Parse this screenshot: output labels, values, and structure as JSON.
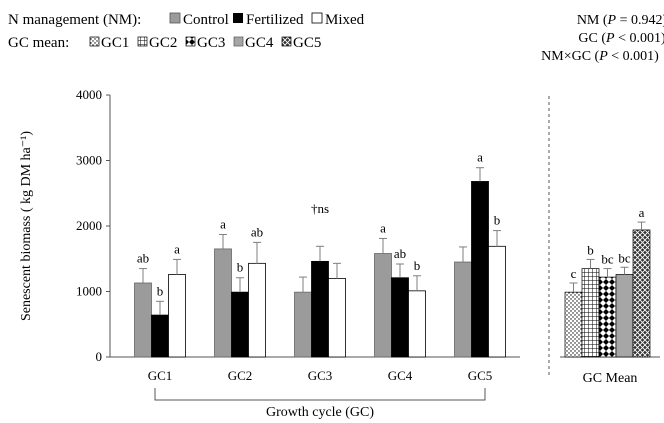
{
  "legend": {
    "nm_label": "N management (NM):",
    "nm_items": [
      "Control",
      "Fertilized",
      "Mixed"
    ],
    "gc_label": "GC mean:",
    "gc_items": [
      "GC1",
      "GC2",
      "GC3",
      "GC4",
      "GC5"
    ]
  },
  "stats": [
    {
      "prefix": "NM (",
      "p": "P",
      "rest": " = 0.942)"
    },
    {
      "prefix": "GC (",
      "p": "P",
      "rest": " < 0.001)"
    },
    {
      "prefix": "NM×GC (",
      "p": "P",
      "rest": " < 0.001)"
    }
  ],
  "colors": {
    "control": "#9b9b9b",
    "fertilized": "#000000",
    "mixed": "#ffffff",
    "error_bar": "#7f7f7f",
    "separator": "#555555"
  },
  "chart_data": [
    {
      "type": "bar",
      "categories": [
        "GC1",
        "GC2",
        "GC3",
        "GC4",
        "GC5"
      ],
      "series": [
        {
          "name": "Control",
          "values": [
            1130,
            1650,
            990,
            1580,
            1450
          ],
          "errors": [
            220,
            220,
            230,
            230,
            230
          ],
          "letters": [
            "ab",
            "a",
            "",
            "a",
            ""
          ]
        },
        {
          "name": "Fertilized",
          "values": [
            640,
            990,
            1460,
            1210,
            2680
          ],
          "errors": [
            210,
            220,
            230,
            210,
            210
          ],
          "letters": [
            "b",
            "b",
            "",
            "ab",
            "a"
          ]
        },
        {
          "name": "Mixed",
          "values": [
            1260,
            1430,
            1200,
            1010,
            1690
          ],
          "errors": [
            230,
            320,
            230,
            230,
            240
          ],
          "letters": [
            "a",
            "ab",
            "",
            "b",
            "b"
          ]
        }
      ],
      "group_annotations": [
        "",
        "",
        "†ns",
        "",
        ""
      ],
      "ylabel": "Senescent biomass ( kg DM ha⁻¹)",
      "xlabel": "Growth cycle (GC)",
      "ylim": [
        0,
        4000
      ],
      "yticks": [
        0,
        1000,
        2000,
        3000,
        4000
      ]
    },
    {
      "type": "bar",
      "categories": [
        "GC1",
        "GC2",
        "GC3",
        "GC4",
        "GC5"
      ],
      "values": [
        990,
        1350,
        1220,
        1260,
        1940
      ],
      "errors": [
        140,
        140,
        130,
        110,
        120
      ],
      "letters": [
        "c",
        "b",
        "bc",
        "bc",
        "a"
      ],
      "patterns": [
        "dots",
        "grid",
        "checker",
        "solid-gray",
        "diamond"
      ],
      "xlabel": "GC Mean",
      "ylim": [
        0,
        4000
      ]
    }
  ]
}
